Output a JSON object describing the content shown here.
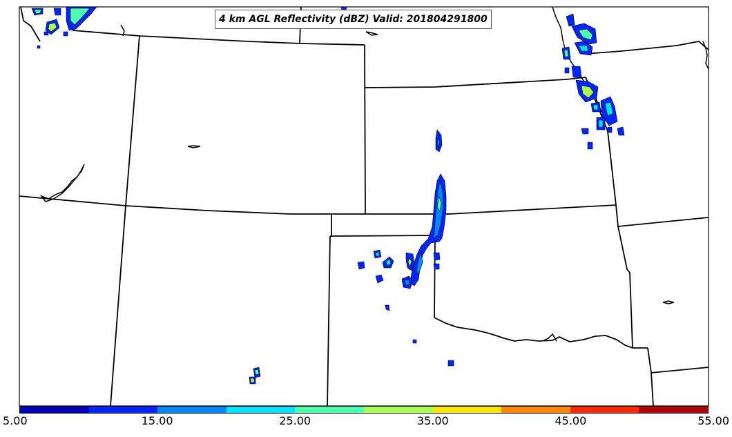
{
  "title": "4 km AGL Reflectivity (dBZ) Valid: 201804291800",
  "colorbar": {
    "tick_labels": [
      "5.00",
      "15.00",
      "25.00",
      "35.00",
      "45.00",
      "55.00"
    ],
    "colors": [
      "#0000b8",
      "#0026ff",
      "#0086ff",
      "#00e0ff",
      "#4dffb0",
      "#a8ff52",
      "#ffe600",
      "#ff8a00",
      "#ff2a00",
      "#b30000"
    ]
  },
  "map": {
    "region": "Central United States",
    "layers": [
      "state-boundaries",
      "coastlines-lakes",
      "reflectivity-contours"
    ]
  }
}
